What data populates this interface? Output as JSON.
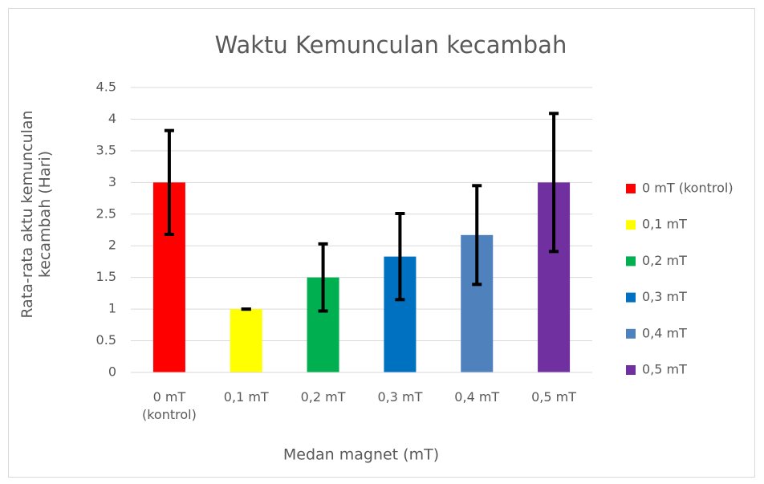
{
  "chart_data": {
    "type": "bar",
    "title": "Waktu Kemunculan kecambah",
    "x_label": "Medan magnet (mT)",
    "y_label": "Rata-rata  aktu kemunculan kecambah (Hari)",
    "categories": [
      "0 mT (kontrol)",
      "0,1 mT",
      "0,2 mT",
      "0,3 mT",
      "0,4 mT",
      "0,5 mT"
    ],
    "values": [
      3,
      1,
      1.5,
      1.83,
      2.17,
      3
    ],
    "errors": [
      0.82,
      0,
      0.53,
      0.68,
      0.78,
      1.09
    ],
    "colors": [
      "#ff0000",
      "#ffff00",
      "#00b050",
      "#0070c0",
      "#4f81bd",
      "#7030a0"
    ],
    "ylim": [
      0,
      4.5
    ],
    "yticks": [
      0,
      0.5,
      1,
      1.5,
      2,
      2.5,
      3,
      3.5,
      4,
      4.5
    ],
    "grid": true,
    "legend": "right"
  }
}
